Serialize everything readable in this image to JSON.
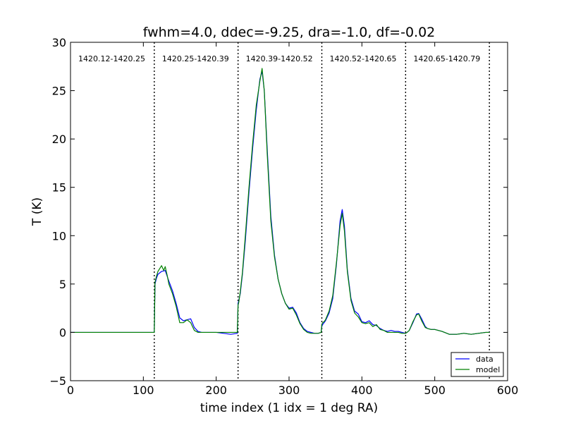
{
  "chart_data": {
    "type": "line",
    "title": "fwhm=4.0, ddec=-9.25, dra=-1.0, df=-0.02",
    "xlabel": "time index (1 idx = 1 deg RA)",
    "ylabel": "T (K)",
    "xlim": [
      0,
      600
    ],
    "ylim": [
      -5,
      30
    ],
    "xticks": [
      0,
      100,
      200,
      300,
      400,
      500,
      600
    ],
    "yticks": [
      -5,
      0,
      5,
      10,
      15,
      20,
      25,
      30
    ],
    "grid": false,
    "legend_position": "bottom-right",
    "vlines": [
      115,
      230,
      345,
      460,
      575
    ],
    "band_labels": [
      {
        "x_start": 0,
        "x_end": 115,
        "text": "1420.12-1420.25"
      },
      {
        "x_start": 115,
        "x_end": 230,
        "text": "1420.25-1420.39"
      },
      {
        "x_start": 230,
        "x_end": 345,
        "text": "1420.39-1420.52"
      },
      {
        "x_start": 345,
        "x_end": 460,
        "text": "1420.52-1420.65"
      },
      {
        "x_start": 460,
        "x_end": 575,
        "text": "1420.65-1420.79"
      }
    ],
    "series": [
      {
        "name": "data",
        "color": "#0000ff",
        "x": [
          0,
          20,
          40,
          60,
          80,
          100,
          114,
          115,
          116,
          118,
          120,
          125,
          130,
          135,
          140,
          145,
          150,
          155,
          160,
          165,
          170,
          175,
          180,
          190,
          200,
          210,
          220,
          229,
          230,
          231,
          233,
          236,
          240,
          245,
          250,
          255,
          260,
          263,
          266,
          270,
          275,
          280,
          285,
          290,
          295,
          300,
          305,
          310,
          315,
          320,
          325,
          330,
          335,
          340,
          344,
          345,
          346,
          348,
          350,
          355,
          360,
          365,
          370,
          373,
          376,
          380,
          385,
          390,
          395,
          400,
          405,
          410,
          415,
          420,
          425,
          430,
          435,
          440,
          445,
          450,
          455,
          460,
          462,
          465,
          470,
          475,
          478,
          482,
          487,
          490,
          495,
          500,
          510,
          520,
          530,
          540,
          550,
          560,
          570,
          575
        ],
        "values": [
          0,
          0,
          0,
          0,
          0,
          0,
          0,
          0,
          5.0,
          5.6,
          6.0,
          6.3,
          6.4,
          5.3,
          4.3,
          3.0,
          1.5,
          1.2,
          1.3,
          1.4,
          0.5,
          0.1,
          0,
          0,
          0,
          -0.1,
          -0.2,
          -0.1,
          3.0,
          3.3,
          4.0,
          6.0,
          9.5,
          14.5,
          19.0,
          23.0,
          26.2,
          27.0,
          25.0,
          19.0,
          12.0,
          8.0,
          5.5,
          4.0,
          3.0,
          2.5,
          2.6,
          2.0,
          1.0,
          0.4,
          0.1,
          0,
          -0.1,
          -0.1,
          0,
          0.6,
          0.8,
          1.0,
          1.2,
          2.0,
          3.5,
          7.0,
          11.5,
          12.7,
          11.0,
          6.5,
          3.5,
          2.2,
          1.9,
          1.1,
          1.0,
          1.2,
          0.8,
          0.7,
          0.4,
          0.2,
          0.1,
          0.2,
          0.1,
          0.1,
          0,
          -0.1,
          0,
          0.2,
          1.0,
          1.9,
          1.95,
          1.4,
          0.6,
          0.4,
          0.3,
          0.3,
          0.1,
          -0.2,
          -0.2,
          -0.1,
          -0.2,
          -0.1,
          0,
          0
        ]
      },
      {
        "name": "model",
        "color": "#008000",
        "x": [
          0,
          20,
          40,
          60,
          80,
          100,
          114,
          115,
          116,
          118,
          120,
          125,
          128,
          130,
          133,
          135,
          140,
          145,
          150,
          155,
          160,
          165,
          170,
          175,
          180,
          190,
          200,
          210,
          220,
          229,
          230,
          231,
          233,
          236,
          240,
          245,
          250,
          255,
          260,
          263,
          266,
          270,
          275,
          280,
          285,
          290,
          295,
          300,
          305,
          310,
          315,
          320,
          325,
          330,
          335,
          340,
          344,
          345,
          346,
          348,
          350,
          355,
          360,
          365,
          370,
          373,
          376,
          380,
          385,
          390,
          395,
          400,
          405,
          410,
          415,
          420,
          425,
          430,
          435,
          440,
          445,
          450,
          455,
          460,
          462,
          465,
          470,
          475,
          478,
          482,
          487,
          490,
          495,
          500,
          510,
          520,
          530,
          540,
          550,
          560,
          570,
          575
        ],
        "values": [
          0,
          0,
          0,
          0,
          0,
          0,
          0,
          0,
          5.2,
          5.8,
          6.3,
          6.9,
          6.4,
          6.8,
          5.8,
          5.0,
          4.0,
          2.7,
          1.0,
          1.0,
          1.3,
          1.0,
          0.2,
          0,
          0,
          0,
          0,
          0,
          0,
          0,
          2.8,
          3.1,
          4.2,
          6.2,
          10.0,
          15.0,
          19.5,
          23.5,
          26.0,
          27.3,
          25.0,
          18.5,
          11.5,
          7.8,
          5.5,
          4.0,
          3.0,
          2.4,
          2.5,
          1.8,
          0.9,
          0.3,
          0,
          -0.1,
          -0.1,
          -0.1,
          0,
          0.8,
          1.0,
          1.1,
          1.3,
          2.2,
          3.8,
          7.2,
          11.0,
          12.3,
          10.5,
          6.3,
          3.3,
          2.0,
          1.6,
          1.0,
          0.9,
          1.0,
          0.6,
          0.8,
          0.3,
          0.2,
          0,
          0,
          0,
          0,
          -0.1,
          -0.1,
          0,
          0.2,
          1.1,
          1.8,
          1.9,
          1.2,
          0.5,
          0.4,
          0.3,
          0.3,
          0.1,
          -0.2,
          -0.2,
          -0.1,
          -0.2,
          -0.1,
          0,
          0
        ]
      }
    ]
  }
}
